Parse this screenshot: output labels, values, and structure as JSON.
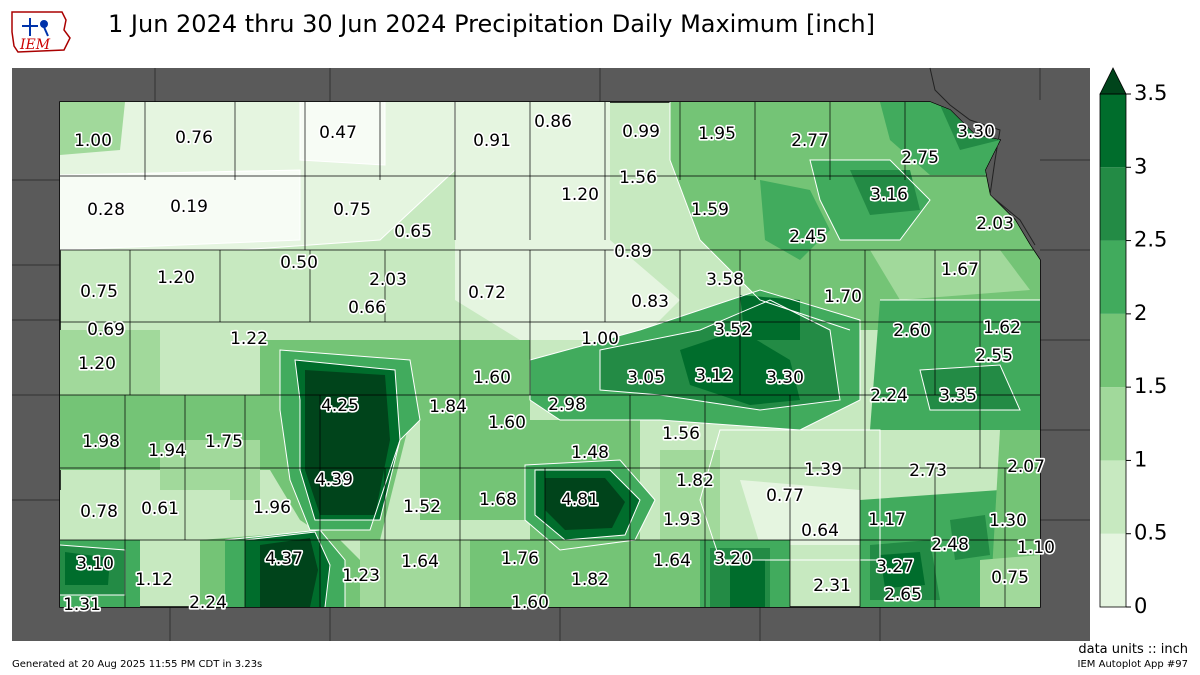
{
  "title": "1 Jun 2024 thru 30 Jun 2024 Precipitation Daily Maximum [inch]",
  "logo_text": "IEM",
  "units_label": "data units :: inch",
  "footer_left": "Generated at 20 Aug 2025 11:55 PM CDT in 3.23s",
  "footer_right": "IEM Autoplot App #97",
  "colorbar": {
    "ticks": [
      "3.5",
      "3",
      "2.5",
      "2",
      "1.5",
      "1",
      "0.5",
      "0"
    ],
    "levels": [
      0,
      0.5,
      1,
      1.5,
      2,
      2.5,
      3,
      3.5
    ],
    "colors": [
      "#f7fcf5",
      "#e5f5e0",
      "#c7e9c0",
      "#a1d99b",
      "#74c476",
      "#41ab5d",
      "#238b45",
      "#006d2c",
      "#00441b"
    ]
  },
  "station_labels": [
    "1.00",
    "0.76",
    "0.47",
    "0.91",
    "0.86",
    "0.99",
    "1.95",
    "2.77",
    "3.30",
    "1.56",
    "2.75",
    "0.28",
    "0.19",
    "0.75",
    "1.20",
    "1.59",
    "3.16",
    "0.65",
    "2.45",
    "2.03",
    "0.50",
    "2.03",
    "0.89",
    "1.67",
    "0.75",
    "1.20",
    "0.72",
    "3.58",
    "1.70",
    "0.66",
    "0.83",
    "0.69",
    "1.22",
    "3.52",
    "2.60",
    "1.62",
    "1.00",
    "2.55",
    "1.20",
    "1.60",
    "3.05",
    "3.12",
    "3.30",
    "4.25",
    "1.84",
    "2.98",
    "2.24",
    "3.35",
    "1.60",
    "1.98",
    "1.94",
    "1.75",
    "1.56",
    "1.48",
    "1.39",
    "2.73",
    "2.07",
    "4.39",
    "1.82",
    "0.77",
    "1.68",
    "4.81",
    "0.78",
    "0.61",
    "1.96",
    "1.52",
    "1.93",
    "1.17",
    "1.30",
    "0.64",
    "2.48",
    "1.10",
    "3.10",
    "4.37",
    "1.64",
    "1.76",
    "3.20",
    "3.27",
    "1.23",
    "1.64",
    "1.12",
    "1.82",
    "2.31",
    "0.75",
    "2.65",
    "1.31",
    "2.24",
    "1.60"
  ]
}
